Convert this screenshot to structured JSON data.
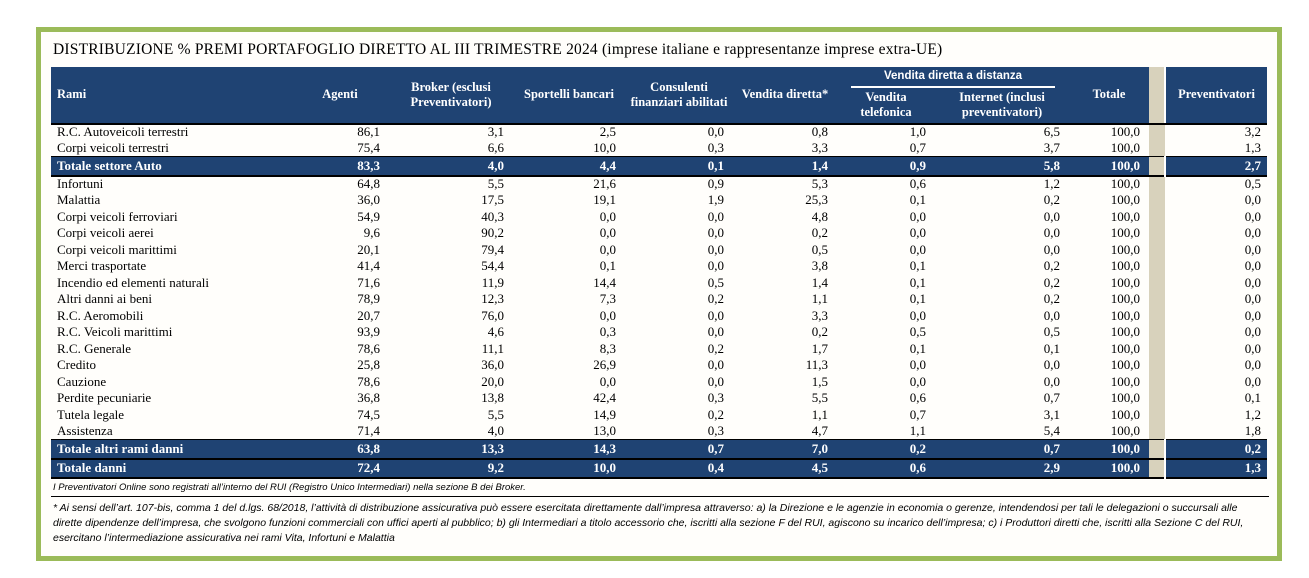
{
  "title": "DISTRIBUZIONE % PREMI PORTAFOGLIO DIRETTO AL III TRIMESTRE 2024 (imprese italiane e rappresentanze imprese extra-UE)",
  "colors": {
    "header_navy": "#1f4373",
    "separator_tan": "#d8d2bc",
    "frame_green": "#9bbb59",
    "text": "#000000"
  },
  "table": {
    "group_header": "Vendita diretta a distanza",
    "columns": {
      "rami": "Rami",
      "agenti": "Agenti",
      "broker": "Broker (esclusi Preventivatori)",
      "sportelli": "Sportelli bancari",
      "consulenti": "Consulenti finanziari abilitati",
      "vendita_diretta": "Vendita diretta*",
      "vendita_telefonica": "Vendita telefonica",
      "internet": "Internet (inclusi preventivatori)",
      "totale": "Totale",
      "preventivatori": "Preventivatori"
    },
    "rows": [
      {
        "label": "R.C. Autoveicoli terrestri",
        "total": false,
        "values": [
          "86,1",
          "3,1",
          "2,5",
          "0,0",
          "0,8",
          "1,0",
          "6,5",
          "100,0",
          "3,2"
        ]
      },
      {
        "label": "Corpi veicoli terrestri",
        "total": false,
        "values": [
          "75,4",
          "6,6",
          "10,0",
          "0,3",
          "3,3",
          "0,7",
          "3,7",
          "100,0",
          "1,3"
        ]
      },
      {
        "label": "Totale settore Auto",
        "total": true,
        "values": [
          "83,3",
          "4,0",
          "4,4",
          "0,1",
          "1,4",
          "0,9",
          "5,8",
          "100,0",
          "2,7"
        ]
      },
      {
        "label": "Infortuni",
        "total": false,
        "values": [
          "64,8",
          "5,5",
          "21,6",
          "0,9",
          "5,3",
          "0,6",
          "1,2",
          "100,0",
          "0,5"
        ]
      },
      {
        "label": "Malattia",
        "total": false,
        "values": [
          "36,0",
          "17,5",
          "19,1",
          "1,9",
          "25,3",
          "0,1",
          "0,2",
          "100,0",
          "0,0"
        ]
      },
      {
        "label": "Corpi veicoli ferroviari",
        "total": false,
        "values": [
          "54,9",
          "40,3",
          "0,0",
          "0,0",
          "4,8",
          "0,0",
          "0,0",
          "100,0",
          "0,0"
        ]
      },
      {
        "label": "Corpi veicoli aerei",
        "total": false,
        "values": [
          "9,6",
          "90,2",
          "0,0",
          "0,0",
          "0,2",
          "0,0",
          "0,0",
          "100,0",
          "0,0"
        ]
      },
      {
        "label": "Corpi veicoli marittimi",
        "total": false,
        "values": [
          "20,1",
          "79,4",
          "0,0",
          "0,0",
          "0,5",
          "0,0",
          "0,0",
          "100,0",
          "0,0"
        ]
      },
      {
        "label": "Merci trasportate",
        "total": false,
        "values": [
          "41,4",
          "54,4",
          "0,1",
          "0,0",
          "3,8",
          "0,1",
          "0,2",
          "100,0",
          "0,0"
        ]
      },
      {
        "label": "Incendio ed elementi naturali",
        "total": false,
        "values": [
          "71,6",
          "11,9",
          "14,4",
          "0,5",
          "1,4",
          "0,1",
          "0,2",
          "100,0",
          "0,0"
        ]
      },
      {
        "label": "Altri danni ai beni",
        "total": false,
        "values": [
          "78,9",
          "12,3",
          "7,3",
          "0,2",
          "1,1",
          "0,1",
          "0,2",
          "100,0",
          "0,0"
        ]
      },
      {
        "label": "R.C. Aeromobili",
        "total": false,
        "values": [
          "20,7",
          "76,0",
          "0,0",
          "0,0",
          "3,3",
          "0,0",
          "0,0",
          "100,0",
          "0,0"
        ]
      },
      {
        "label": "R.C. Veicoli marittimi",
        "total": false,
        "values": [
          "93,9",
          "4,6",
          "0,3",
          "0,0",
          "0,2",
          "0,5",
          "0,5",
          "100,0",
          "0,0"
        ]
      },
      {
        "label": "R.C. Generale",
        "total": false,
        "values": [
          "78,6",
          "11,1",
          "8,3",
          "0,2",
          "1,7",
          "0,1",
          "0,1",
          "100,0",
          "0,0"
        ]
      },
      {
        "label": "Credito",
        "total": false,
        "values": [
          "25,8",
          "36,0",
          "26,9",
          "0,0",
          "11,3",
          "0,0",
          "0,0",
          "100,0",
          "0,0"
        ]
      },
      {
        "label": "Cauzione",
        "total": false,
        "values": [
          "78,6",
          "20,0",
          "0,0",
          "0,0",
          "1,5",
          "0,0",
          "0,0",
          "100,0",
          "0,0"
        ]
      },
      {
        "label": "Perdite pecuniarie",
        "total": false,
        "values": [
          "36,8",
          "13,8",
          "42,4",
          "0,3",
          "5,5",
          "0,6",
          "0,7",
          "100,0",
          "0,1"
        ]
      },
      {
        "label": "Tutela legale",
        "total": false,
        "values": [
          "74,5",
          "5,5",
          "14,9",
          "0,2",
          "1,1",
          "0,7",
          "3,1",
          "100,0",
          "1,2"
        ]
      },
      {
        "label": "Assistenza",
        "total": false,
        "values": [
          "71,4",
          "4,0",
          "13,0",
          "0,3",
          "4,7",
          "1,1",
          "5,4",
          "100,0",
          "1,8"
        ]
      },
      {
        "label": "Totale altri rami danni",
        "total": true,
        "values": [
          "63,8",
          "13,3",
          "14,3",
          "0,7",
          "7,0",
          "0,2",
          "0,7",
          "100,0",
          "0,2"
        ]
      },
      {
        "label": "Totale danni",
        "total": true,
        "values": [
          "72,4",
          "9,2",
          "10,0",
          "0,4",
          "4,5",
          "0,6",
          "2,9",
          "100,0",
          "1,3"
        ]
      }
    ]
  },
  "footnotes": {
    "note1": "I Preventivatori Online sono registrati all’interno del RUI (Registro Unico Intermediari) nella sezione B dei Broker.",
    "note2": "* Ai sensi dell’art. 107-bis, comma 1 del d.lgs. 68/2018, l’attività di distribuzione assicurativa può essere esercitata direttamente dall’impresa attraverso: a) la Direzione e le agenzie in economia o gerenze, intendendosi per tali le delegazioni o succursali alle dirette dipendenze dell’impresa, che svolgono funzioni commerciali con uffici aperti al pubblico; b) gli Intermediari a titolo accessorio che, iscritti alla sezione F del RUI, agiscono su incarico dell’impresa; c) i Produttori diretti che, iscritti alla Sezione C del RUI, esercitano l’intermediazione assicurativa nei rami Vita, Infortuni e Malattia"
  }
}
